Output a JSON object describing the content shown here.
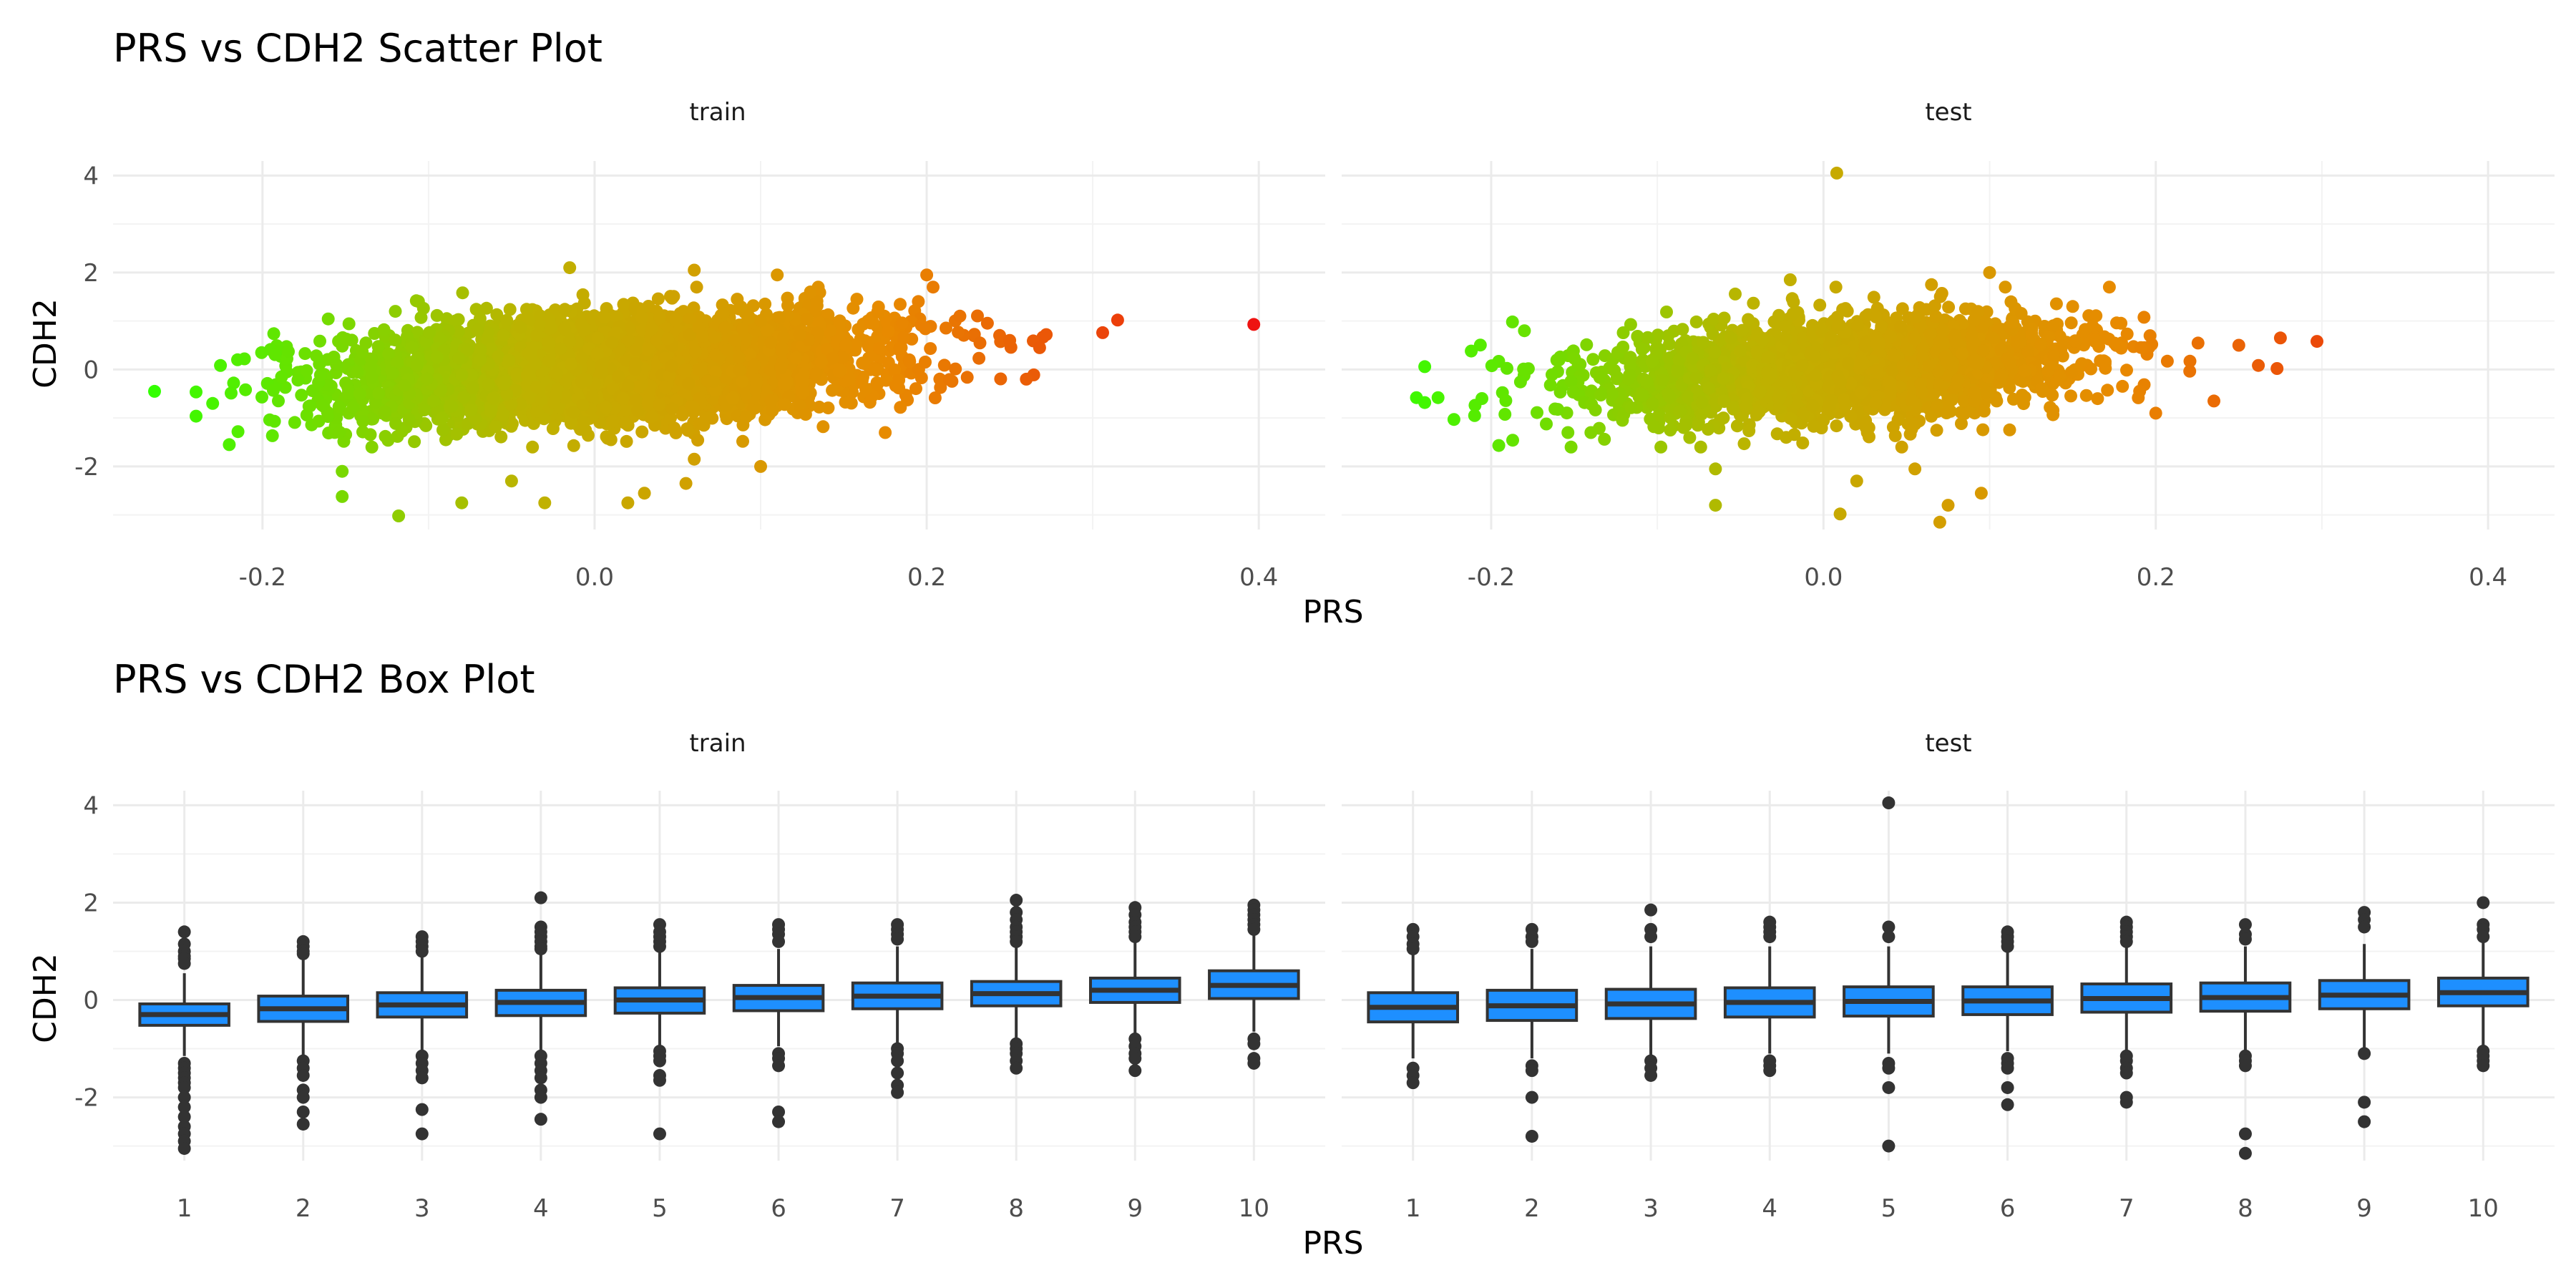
{
  "chart_data": [
    {
      "type": "scatter",
      "title": "PRS vs CDH2 Scatter Plot",
      "xlabel": "PRS",
      "ylabel": "CDH2",
      "xlim": [
        -0.29,
        0.44
      ],
      "ylim": [
        -3.3,
        4.3
      ],
      "x_ticks": [
        "-0.2",
        "0.0",
        "0.2",
        "0.4"
      ],
      "y_ticks": [
        "-2",
        "0",
        "2",
        "4"
      ],
      "x_tick_values": [
        -0.2,
        0.0,
        0.2,
        0.4
      ],
      "y_tick_values": [
        -2,
        0,
        2,
        4
      ],
      "grid": true,
      "legend": "none",
      "color_gradient": [
        "#33ff00",
        "#bdb300",
        "#e88a00",
        "#ee1111"
      ],
      "panels": [
        {
          "facet": "train",
          "points": [
            [
              -0.265,
              -0.45
            ],
            [
              0.397,
              0.93
            ],
            [
              0.315,
              1.02
            ],
            [
              0.306,
              0.76
            ],
            [
              0.272,
              0.72
            ],
            [
              0.268,
              0.45
            ],
            [
              -0.118,
              -3.02
            ],
            [
              -0.152,
              -2.62
            ],
            [
              -0.152,
              -2.1
            ],
            [
              -0.08,
              -2.75
            ],
            [
              -0.03,
              -2.75
            ],
            [
              0.02,
              -2.75
            ],
            [
              0.03,
              -2.55
            ],
            [
              0.055,
              -2.35
            ],
            [
              0.06,
              -1.85
            ],
            [
              -0.015,
              2.1
            ],
            [
              0.06,
              2.05
            ],
            [
              0.2,
              1.95
            ],
            [
              0.11,
              1.95
            ],
            [
              -0.22,
              -1.55
            ],
            [
              -0.23,
              -0.7
            ],
            [
              -0.215,
              0.2
            ],
            [
              0.175,
              -1.3
            ],
            [
              0.22,
              1.1
            ],
            [
              0.25,
              0.6
            ],
            [
              0.26,
              -0.2
            ],
            [
              0.1,
              -2.0
            ],
            [
              -0.05,
              -2.3
            ],
            [
              0.13,
              1.6
            ],
            [
              -0.12,
              1.2
            ]
          ]
        },
        {
          "facet": "test",
          "points": [
            [
              0.008,
              4.05
            ],
            [
              0.297,
              0.58
            ],
            [
              0.275,
              0.65
            ],
            [
              0.273,
              0.02
            ],
            [
              -0.245,
              -0.58
            ],
            [
              -0.232,
              -0.58
            ],
            [
              -0.212,
              0.38
            ],
            [
              -0.21,
              -0.95
            ],
            [
              -0.065,
              -2.8
            ],
            [
              0.01,
              -2.98
            ],
            [
              0.07,
              -3.15
            ],
            [
              0.075,
              -2.8
            ],
            [
              0.095,
              -2.55
            ],
            [
              -0.065,
              -2.05
            ],
            [
              0.055,
              -2.05
            ],
            [
              0.1,
              2.0
            ],
            [
              -0.02,
              1.85
            ],
            [
              0.065,
              1.75
            ],
            [
              0.235,
              -0.65
            ],
            [
              0.25,
              0.5
            ],
            [
              0.02,
              -2.3
            ],
            [
              -0.14,
              -1.3
            ],
            [
              0.15,
              1.3
            ],
            [
              -0.18,
              0.8
            ],
            [
              0.2,
              -0.9
            ]
          ]
        }
      ]
    },
    {
      "type": "box",
      "title": "PRS vs CDH2 Box Plot",
      "xlabel": "PRS",
      "ylabel": "CDH2",
      "ylim": [
        -3.3,
        4.3
      ],
      "y_ticks": [
        "-2",
        "0",
        "2",
        "4"
      ],
      "y_tick_values": [
        -2,
        0,
        2,
        4
      ],
      "categories": [
        "1",
        "2",
        "3",
        "4",
        "5",
        "6",
        "7",
        "8",
        "9",
        "10"
      ],
      "grid": true,
      "legend": "none",
      "fill_color": "#1e8fff",
      "panels": [
        {
          "facet": "train",
          "boxes": [
            {
              "q1": -0.52,
              "median": -0.3,
              "q3": -0.08,
              "lower": -1.15,
              "upper": 0.55,
              "outliers": [
                1.4,
                1.15,
                1.0,
                0.9,
                0.85,
                0.75,
                -1.3,
                -1.4,
                -1.5,
                -1.6,
                -1.7,
                -1.8,
                -2.0,
                -2.2,
                -2.4,
                -2.6,
                -2.75,
                -2.9,
                -3.05
              ]
            },
            {
              "q1": -0.44,
              "median": -0.18,
              "q3": 0.08,
              "lower": -1.15,
              "upper": 0.85,
              "outliers": [
                1.2,
                1.1,
                1.0,
                0.95,
                -1.25,
                -1.4,
                -1.55,
                -1.85,
                -2.0,
                -2.3,
                -2.55
              ]
            },
            {
              "q1": -0.35,
              "median": -0.1,
              "q3": 0.15,
              "lower": -1.05,
              "upper": 0.9,
              "outliers": [
                1.3,
                1.2,
                1.1,
                1.0,
                -1.15,
                -1.3,
                -1.45,
                -1.6,
                -2.25,
                -2.75
              ]
            },
            {
              "q1": -0.32,
              "median": -0.05,
              "q3": 0.2,
              "lower": -1.05,
              "upper": 0.95,
              "outliers": [
                2.1,
                1.5,
                1.4,
                1.3,
                1.2,
                1.1,
                1.05,
                -1.15,
                -1.3,
                -1.45,
                -1.6,
                -1.85,
                -2.0,
                -2.45
              ]
            },
            {
              "q1": -0.27,
              "median": 0.0,
              "q3": 0.25,
              "lower": -0.95,
              "upper": 1.0,
              "outliers": [
                1.55,
                1.4,
                1.3,
                1.2,
                1.1,
                -1.05,
                -1.15,
                -1.25,
                -1.55,
                -1.65,
                -2.75
              ]
            },
            {
              "q1": -0.22,
              "median": 0.05,
              "q3": 0.3,
              "lower": -0.95,
              "upper": 1.05,
              "outliers": [
                1.55,
                1.45,
                1.35,
                1.2,
                -1.1,
                -1.2,
                -1.35,
                -2.3,
                -2.5
              ]
            },
            {
              "q1": -0.18,
              "median": 0.08,
              "q3": 0.35,
              "lower": -0.9,
              "upper": 1.1,
              "outliers": [
                1.55,
                1.45,
                1.35,
                1.25,
                -1.0,
                -1.1,
                -1.25,
                -1.5,
                -1.75,
                -1.9
              ]
            },
            {
              "q1": -0.12,
              "median": 0.13,
              "q3": 0.38,
              "lower": -0.85,
              "upper": 1.15,
              "outliers": [
                2.05,
                1.8,
                1.65,
                1.5,
                1.4,
                1.3,
                1.2,
                -0.9,
                -1.0,
                -1.1,
                -1.25,
                -1.4
              ]
            },
            {
              "q1": -0.05,
              "median": 0.2,
              "q3": 0.45,
              "lower": -0.75,
              "upper": 1.25,
              "outliers": [
                1.9,
                1.75,
                1.6,
                1.5,
                1.4,
                1.3,
                -0.8,
                -0.95,
                -1.1,
                -1.2,
                -1.45
              ]
            },
            {
              "q1": 0.03,
              "median": 0.3,
              "q3": 0.6,
              "lower": -0.65,
              "upper": 1.35,
              "outliers": [
                1.95,
                1.85,
                1.75,
                1.65,
                1.55,
                1.45,
                -0.8,
                -0.9,
                -1.2,
                -1.3
              ]
            }
          ]
        },
        {
          "facet": "test",
          "boxes": [
            {
              "q1": -0.45,
              "median": -0.15,
              "q3": 0.15,
              "lower": -1.2,
              "upper": 1.0,
              "outliers": [
                1.45,
                1.3,
                1.15,
                1.05,
                -1.4,
                -1.55,
                -1.7
              ]
            },
            {
              "q1": -0.42,
              "median": -0.12,
              "q3": 0.2,
              "lower": -1.2,
              "upper": 1.05,
              "outliers": [
                1.45,
                1.3,
                1.2,
                -1.35,
                -1.45,
                -2.0,
                -2.8
              ]
            },
            {
              "q1": -0.38,
              "median": -0.08,
              "q3": 0.22,
              "lower": -1.15,
              "upper": 1.1,
              "outliers": [
                1.85,
                1.45,
                1.3,
                -1.25,
                -1.4,
                -1.55
              ]
            },
            {
              "q1": -0.35,
              "median": -0.05,
              "q3": 0.25,
              "lower": -1.1,
              "upper": 1.1,
              "outliers": [
                1.6,
                1.5,
                1.4,
                1.3,
                -1.25,
                -1.35,
                -1.45
              ]
            },
            {
              "q1": -0.33,
              "median": -0.03,
              "q3": 0.27,
              "lower": -1.1,
              "upper": 1.1,
              "outliers": [
                4.05,
                1.5,
                1.3,
                -1.3,
                -1.4,
                -1.8,
                -3.0
              ]
            },
            {
              "q1": -0.3,
              "median": -0.02,
              "q3": 0.27,
              "lower": -1.05,
              "upper": 1.05,
              "outliers": [
                1.4,
                1.3,
                1.2,
                1.1,
                -1.2,
                -1.3,
                -1.4,
                -1.8,
                -2.15
              ]
            },
            {
              "q1": -0.25,
              "median": 0.03,
              "q3": 0.33,
              "lower": -1.05,
              "upper": 1.1,
              "outliers": [
                1.6,
                1.5,
                1.4,
                1.3,
                1.2,
                -1.15,
                -1.25,
                -1.4,
                -1.5,
                -2.0,
                -2.1
              ]
            },
            {
              "q1": -0.23,
              "median": 0.05,
              "q3": 0.35,
              "lower": -1.05,
              "upper": 1.1,
              "outliers": [
                1.55,
                1.35,
                1.25,
                -1.15,
                -1.25,
                -1.35,
                -2.75,
                -3.15
              ]
            },
            {
              "q1": -0.18,
              "median": 0.1,
              "q3": 0.4,
              "lower": -1.0,
              "upper": 1.15,
              "outliers": [
                1.8,
                1.65,
                1.5,
                -1.1,
                -2.1,
                -2.5
              ]
            },
            {
              "q1": -0.12,
              "median": 0.15,
              "q3": 0.45,
              "lower": -0.95,
              "upper": 1.2,
              "outliers": [
                2.0,
                1.55,
                1.45,
                1.3,
                -1.05,
                -1.15,
                -1.25,
                -1.35
              ]
            }
          ]
        }
      ]
    }
  ]
}
